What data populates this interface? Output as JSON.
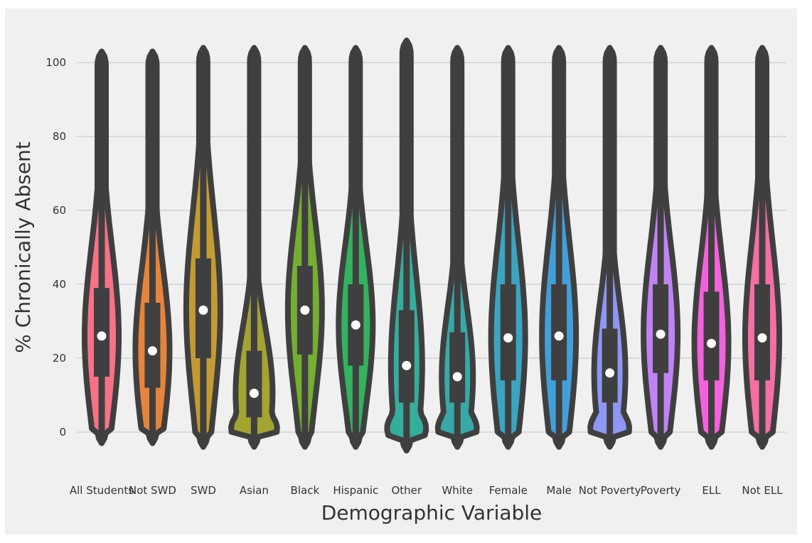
{
  "chart_data": {
    "type": "violin",
    "xlabel": "Demographic Variable",
    "ylabel": "% Chronically Absent",
    "yticks": [
      0,
      20,
      40,
      60,
      80,
      100
    ],
    "ylim": [
      -15,
      105
    ],
    "grid": "horizontal",
    "categories": [
      "All Students",
      "Not SWD",
      "SWD",
      "Asian",
      "Black",
      "Hispanic",
      "Other",
      "White",
      "Female",
      "Male",
      "Not Poverty",
      "Poverty",
      "ELL",
      "Not ELL"
    ],
    "series": [
      {
        "category": "All Students",
        "color": "#f77189",
        "median": 26,
        "q1": 15,
        "q3": 39,
        "min": -3,
        "max": 103
      },
      {
        "category": "Not SWD",
        "color": "#e6843a",
        "median": 22,
        "q1": 12,
        "q3": 35,
        "min": -3,
        "max": 103
      },
      {
        "category": "SWD",
        "color": "#c39b32",
        "median": 33,
        "q1": 20,
        "q3": 47,
        "min": -4,
        "max": 104
      },
      {
        "category": "Asian",
        "color": "#a3a431",
        "median": 10.5,
        "q1": 4,
        "q3": 22,
        "min": -4,
        "max": 104
      },
      {
        "category": "Black",
        "color": "#76ae31",
        "median": 33,
        "q1": 21,
        "q3": 45,
        "min": -4,
        "max": 104
      },
      {
        "category": "Hispanic",
        "color": "#33b25f",
        "median": 29,
        "q1": 18,
        "q3": 40,
        "min": -4,
        "max": 104
      },
      {
        "category": "Other",
        "color": "#35ad9c",
        "median": 18,
        "q1": 8,
        "q3": 33,
        "min": -5,
        "max": 106
      },
      {
        "category": "White",
        "color": "#38a8a8",
        "median": 15,
        "q1": 8,
        "q3": 27,
        "min": -4,
        "max": 104
      },
      {
        "category": "Female",
        "color": "#3aa5c1",
        "median": 25.5,
        "q1": 14,
        "q3": 40,
        "min": -4,
        "max": 104
      },
      {
        "category": "Male",
        "color": "#41a0d9",
        "median": 26,
        "q1": 14,
        "q3": 40,
        "min": -4,
        "max": 104
      },
      {
        "category": "Not Poverty",
        "color": "#8e97f3",
        "median": 16,
        "q1": 8,
        "q3": 28,
        "min": -4,
        "max": 104
      },
      {
        "category": "Poverty",
        "color": "#c183f4",
        "median": 26.5,
        "q1": 16,
        "q3": 40,
        "min": -4,
        "max": 104
      },
      {
        "category": "ELL",
        "color": "#f461dd",
        "median": 24,
        "q1": 14,
        "q3": 38,
        "min": -4,
        "max": 104
      },
      {
        "category": "Not ELL",
        "color": "#f66fa4",
        "median": 25.5,
        "q1": 14,
        "q3": 40,
        "min": -4,
        "max": 104
      }
    ]
  }
}
